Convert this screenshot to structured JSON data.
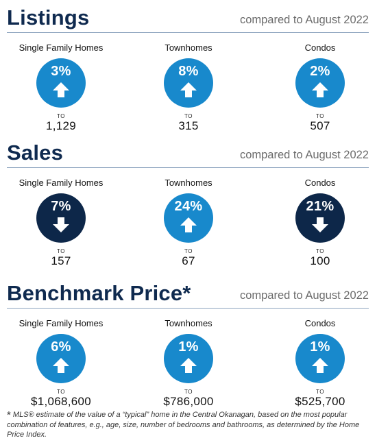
{
  "compare_label": "compared to August 2022",
  "to_label": "TO",
  "sections": [
    {
      "title": "Listings",
      "items": [
        {
          "label": "Single Family Homes",
          "pct": "3%",
          "direction": "up",
          "value": "1,129"
        },
        {
          "label": "Townhomes",
          "pct": "8%",
          "direction": "up",
          "value": "315"
        },
        {
          "label": "Condos",
          "pct": "2%",
          "direction": "up",
          "value": "507"
        }
      ]
    },
    {
      "title": "Sales",
      "items": [
        {
          "label": "Single Family Homes",
          "pct": "7%",
          "direction": "down",
          "value": "157"
        },
        {
          "label": "Townhomes",
          "pct": "24%",
          "direction": "up",
          "value": "67"
        },
        {
          "label": "Condos",
          "pct": "21%",
          "direction": "down",
          "value": "100"
        }
      ]
    },
    {
      "title": "Benchmark Price*",
      "items": [
        {
          "label": "Single Family Homes",
          "pct": "6%",
          "direction": "up",
          "value": "$1,068,600"
        },
        {
          "label": "Townhomes",
          "pct": "1%",
          "direction": "up",
          "value": "$786,000"
        },
        {
          "label": "Condos",
          "pct": "1%",
          "direction": "up",
          "value": "$525,700"
        }
      ]
    }
  ],
  "colors": {
    "up": "#1889cc",
    "down": "#0d2749",
    "title": "#0f2a4f"
  },
  "footnote": {
    "star": "*",
    "text": "MLS® estimate of the value of a “typical” home in the Central Okanagan, based on the most popular combination of features, e.g., age, size, number of bedrooms and bathrooms, as determined by the Home Price Index."
  }
}
